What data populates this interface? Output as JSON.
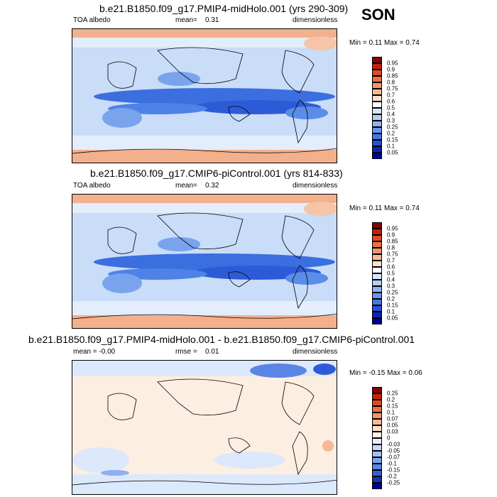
{
  "season": "SON",
  "panels": [
    {
      "title": "b.e21.B1850.f09_g17.PMIP4-midHolo.001 (yrs 290-309)",
      "left": "TOA albedo",
      "center_label": "mean=",
      "center_value": "0.31",
      "right": "dimensionless",
      "minmax": "Min =  0.11 Max =  0.74",
      "levels": [
        "0.95",
        "0.9",
        "0.85",
        "0.8",
        "0.75",
        "0.7",
        "0.6",
        "0.5",
        "0.4",
        "0.3",
        "0.25",
        "0.2",
        "0.15",
        "0.1",
        "0.05"
      ],
      "colors": [
        "#8b0000",
        "#c4210b",
        "#e14a22",
        "#ef6f41",
        "#f49468",
        "#f9b894",
        "#fce0cc",
        "#ffffff",
        "#d6e6fb",
        "#b3cdf6",
        "#8eb3f0",
        "#6a96ea",
        "#4678e2",
        "#2a4fd6",
        "#0d24b8",
        "#000096"
      ]
    },
    {
      "title": "b.e21.B1850.f09_g17.CMIP6-piControl.001 (yrs 814-833)",
      "left": "TOA albedo",
      "center_label": "mean=",
      "center_value": "0.32",
      "right": "dimensionless",
      "minmax": "Min =  0.11 Max =  0.74",
      "levels": [
        "0.95",
        "0.9",
        "0.85",
        "0.8",
        "0.75",
        "0.7",
        "0.6",
        "0.5",
        "0.4",
        "0.3",
        "0.25",
        "0.2",
        "0.15",
        "0.1",
        "0.05"
      ],
      "colors": [
        "#8b0000",
        "#c4210b",
        "#e14a22",
        "#ef6f41",
        "#f49468",
        "#f9b894",
        "#fce0cc",
        "#ffffff",
        "#d6e6fb",
        "#b3cdf6",
        "#8eb3f0",
        "#6a96ea",
        "#4678e2",
        "#2a4fd6",
        "#0d24b8",
        "#000096"
      ]
    },
    {
      "title": "b.e21.B1850.f09_g17.PMIP4-midHolo.001 - b.e21.B1850.f09_g17.CMIP6-piControl.001",
      "left": "mean =  -0.00",
      "center_label": "rmse =",
      "center_value": "0.01",
      "right": "dimensionless",
      "minmax": "Min =  -0.15 Max =  0.06",
      "levels": [
        "0.25",
        "0.2",
        "0.15",
        "0.1",
        "0.07",
        "0.05",
        "0.03",
        "0",
        "-0.03",
        "-0.05",
        "-0.07",
        "-0.1",
        "-0.15",
        "-0.2",
        "-0.25"
      ],
      "colors": [
        "#8b0000",
        "#c4210b",
        "#e14a22",
        "#ef6f41",
        "#f49468",
        "#f9b894",
        "#fce0cc",
        "#fdf0e6",
        "#e6eefb",
        "#c6d8f7",
        "#a3c0f2",
        "#7ea4ec",
        "#5985e4",
        "#3560d8",
        "#1633b8",
        "#000096"
      ]
    }
  ]
}
